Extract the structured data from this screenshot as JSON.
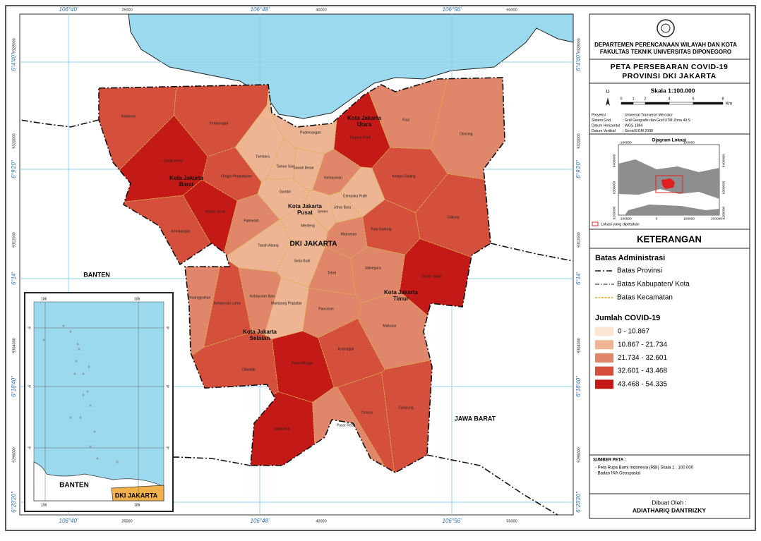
{
  "map": {
    "grid_top": [
      "106°40'",
      "25000",
      "106°48'",
      "40000",
      "106°56'",
      "55000"
    ],
    "grid_left": [
      "9328000",
      "6°4'40\"",
      "9320000",
      "6°9'20\"",
      "9312000",
      "6°14'",
      "9304000",
      "6°18'40\"",
      "9296000",
      "6°23'20\""
    ],
    "regions": [
      "Kota Jakarta Utara",
      "Kota Jakarta Barat",
      "Kota Jakarta Pusat",
      "Kota Jakarta Timur",
      "Kota Jakarta Selatan"
    ],
    "province_label": "DKI JAKARTA",
    "neighbors": [
      "BANTEN",
      "JAWA BARAT"
    ],
    "districts": [
      "Kalideres",
      "Penjaringan",
      "Cengkareng",
      "Pademangan",
      "Tanjung Priok",
      "Koja",
      "Cilincing",
      "Tambora",
      "Taman Sari",
      "Sawah Besar",
      "Kemayoran",
      "Cempaka Putih",
      "Kelapa Gading",
      "Grogol Petamburan",
      "Kebon Jeruk",
      "Gambir",
      "Senen",
      "Johar Baru",
      "Kembangan",
      "Palmerah",
      "Menteng",
      "Matraman",
      "Pulo Gadung",
      "Cakung",
      "Tanah Abang",
      "Setia Budi",
      "Tebet",
      "Jatinegara",
      "Duren Sawit",
      "Pesanggrahan",
      "Kebayoran Lama",
      "Kebayoran Baru",
      "Mampang Prapatan",
      "Pancoran",
      "Makasar",
      "Kramatjati",
      "Cilandak",
      "Pasar Minggu",
      "Jagakarsa",
      "Pasar Rebo",
      "Ciracas",
      "Cipayung"
    ]
  },
  "inset": {
    "lon_label": "106",
    "lat_label": "-6",
    "labels": [
      "BANTEN",
      "DKI JAKARTA"
    ]
  },
  "sidebar": {
    "institution": [
      "DEPARTEMEN PERENCANAAN WILAYAH DAN KOTA",
      "FAKULTAS TEKNIK UNIVERSITAS DIPONEGORO"
    ],
    "title": [
      "PETA PERSEBARAN COVID-19",
      "PROVINSI DKI JAKARTA"
    ],
    "north": "U",
    "scale": "Skala  1:100.000",
    "scale_ticks": [
      "0",
      "1",
      "2",
      "4",
      "6",
      "8"
    ],
    "scale_unit": "Km",
    "info": [
      [
        "Proyeksi",
        ": Universal Tranverse Mercator"
      ],
      [
        "Sistem Grid",
        ": Grid Geografis dan Grid UTM Zona 49.S"
      ],
      [
        "Datum Horizontal",
        ": WGS 1984"
      ],
      [
        "Datum Vertikal",
        ": Geoid EGM 2008"
      ]
    ],
    "diagram": {
      "title": "Diagram Lokasi",
      "x_ticks": [
        "-100000",
        "0",
        "100000",
        "200000"
      ],
      "y_ticks": [
        "9400000",
        "9300000",
        "9200000"
      ],
      "legend": "Lokasi yang dipetakan"
    },
    "legend": {
      "title": "KETERANGAN",
      "boundaries_title": "Batas Administrasi",
      "boundaries": [
        "Batas Provinsi",
        "Batas Kabupaten/ Kota",
        "Batas Kecamatan"
      ],
      "classes_title": "Jumlah COVID-19",
      "classes": [
        {
          "label": "0 - 10.867",
          "color": "#fce4d2"
        },
        {
          "label": "10.867 - 21.734",
          "color": "#eeb594"
        },
        {
          "label": "21.734 - 32.601",
          "color": "#e0866a"
        },
        {
          "label": "32.601 - 43.468",
          "color": "#d4503d"
        },
        {
          "label": "43.468 - 54.335",
          "color": "#c41a17"
        }
      ]
    },
    "sources": {
      "title": "SUMBER PETA :",
      "items": [
        "- Peta Rupa Bumi Indonesia (RBI) Skala 1 : 100.000",
        "- Badan INA Geospasial"
      ]
    },
    "author": {
      "title": "Dibuat Oleh :",
      "name": "ADIATHARIQ DANTRIZKY"
    }
  }
}
